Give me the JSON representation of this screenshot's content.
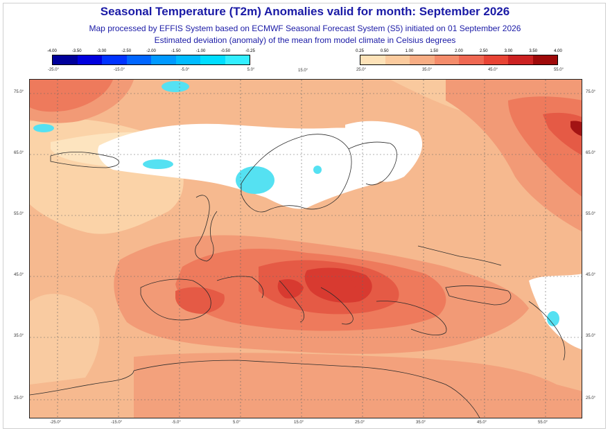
{
  "title": "Seasonal Temperature (T2m) Anomalies valid for month: September 2026",
  "subtitle1": "Map processed by EFFIS System based on ECMWF Seasonal Forecast System (S5) initiated on 01 September 2026",
  "subtitle2": "Estimated deviation (anomaly) of the mean from model climate in Celsius degrees",
  "legend_cold": {
    "ticks": [
      "-4.00",
      "-3.50",
      "-3.00",
      "-2.50",
      "-2.00",
      "-1.50",
      "-1.00",
      "-0.50",
      "-0.25"
    ],
    "colors": [
      "#00009a",
      "#0000dd",
      "#0033ff",
      "#0066ff",
      "#0099ff",
      "#00bbff",
      "#00ddff",
      "#33eeff"
    ],
    "lon_labels": [
      "-25.0°",
      "-15.0°",
      "-5.0°",
      "5.0°"
    ]
  },
  "mid_lon_label": "15.0°",
  "legend_warm": {
    "ticks": [
      "0.25",
      "0.50",
      "1.00",
      "1.50",
      "2.00",
      "2.50",
      "3.00",
      "3.50",
      "4.00"
    ],
    "colors": [
      "#fde2b8",
      "#fbcb9e",
      "#f7ad84",
      "#f48c6b",
      "#ef6852",
      "#e84435",
      "#cc2222",
      "#9e0a0a"
    ],
    "lon_labels": [
      "25.0°",
      "35.0°",
      "45.0°",
      "55.0°"
    ]
  },
  "map": {
    "left_lat_labels": [
      "75.0°",
      "65.0°",
      "55.0°",
      "45.0°",
      "35.0°",
      "25.0°"
    ],
    "right_lat_labels": [
      "75.0°",
      "65.0°",
      "55.0°",
      "45.0°",
      "35.0°",
      "25.0°"
    ],
    "bottom_lon_labels": [
      "-25.0°",
      "-15.0°",
      "-5.0°",
      "5.0°",
      "15.0°",
      "25.0°",
      "35.0°",
      "45.0°",
      "55.0°"
    ],
    "colors": {
      "base": "#f6b98f",
      "light": "#fbd3a8",
      "pale": "#fde4bf",
      "white": "#ffffff",
      "mid": "#f29a76",
      "warm": "#ee7a5c",
      "hot": "#e55a45",
      "hotter": "#d83a30",
      "hottest": "#a31414",
      "cyan": "#55e1f2",
      "grid": "#666666",
      "border": "#2b2b2b"
    }
  }
}
